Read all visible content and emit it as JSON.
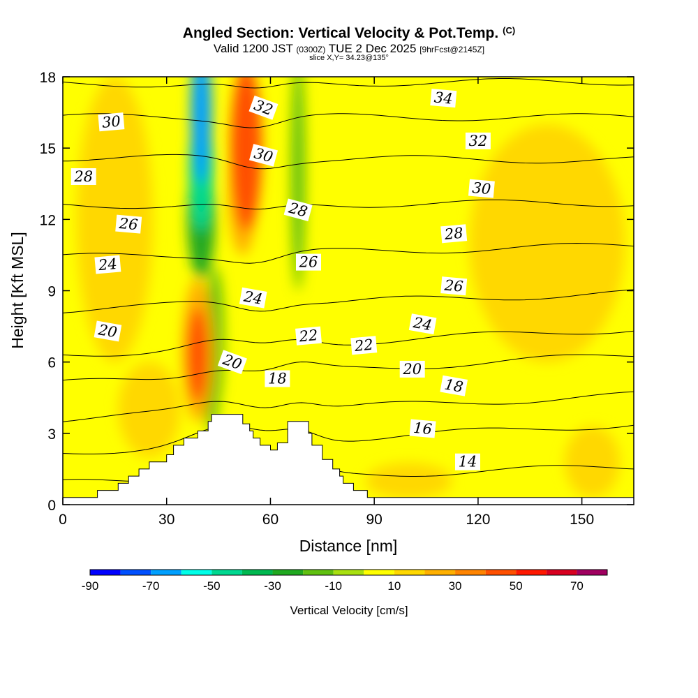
{
  "title": {
    "main": "Angled Section: Vertical Velocity & Pot.Temp.",
    "copyright": "(C)",
    "valid_prefix": "Valid 1200 JST",
    "valid_utc": "(0300Z)",
    "valid_date": "TUE 2 Dec 2025",
    "forecast": "[9hrFcst@2145Z]",
    "slice": "slice X,Y= 34.23@135°"
  },
  "chart_data": {
    "type": "heatmap",
    "xlabel": "Distance [nm]",
    "ylabel": "Height [Kft MSL]",
    "xlim": [
      0,
      165
    ],
    "ylim": [
      0,
      18
    ],
    "x_ticks": [
      "0",
      "30",
      "60",
      "90",
      "120",
      "150"
    ],
    "y_ticks": [
      "0",
      "3",
      "6",
      "9",
      "12",
      "15",
      "18"
    ],
    "background_level": 0,
    "terrain": [
      [
        0,
        0.3
      ],
      [
        10,
        0.3
      ],
      [
        10,
        0.6
      ],
      [
        16,
        0.6
      ],
      [
        16,
        0.9
      ],
      [
        19,
        0.9
      ],
      [
        19,
        1.2
      ],
      [
        22,
        1.2
      ],
      [
        22,
        1.5
      ],
      [
        25,
        1.5
      ],
      [
        25,
        1.8
      ],
      [
        30,
        1.8
      ],
      [
        30,
        2.1
      ],
      [
        32,
        2.1
      ],
      [
        32,
        2.5
      ],
      [
        35,
        2.5
      ],
      [
        35,
        2.8
      ],
      [
        39,
        2.8
      ],
      [
        39,
        3.1
      ],
      [
        42,
        3.1
      ],
      [
        42,
        3.5
      ],
      [
        43,
        3.5
      ],
      [
        43,
        3.8
      ],
      [
        52,
        3.8
      ],
      [
        52,
        3.4
      ],
      [
        54,
        3.4
      ],
      [
        54,
        3.1
      ],
      [
        55,
        3.1
      ],
      [
        55,
        2.8
      ],
      [
        57,
        2.8
      ],
      [
        57,
        2.5
      ],
      [
        60,
        2.5
      ],
      [
        60,
        2.3
      ],
      [
        62,
        2.3
      ],
      [
        62,
        2.6
      ],
      [
        65,
        2.6
      ],
      [
        65,
        3.5
      ],
      [
        71,
        3.5
      ],
      [
        71,
        3.0
      ],
      [
        72,
        3.0
      ],
      [
        72,
        2.5
      ],
      [
        75,
        2.5
      ],
      [
        75,
        1.9
      ],
      [
        78,
        1.9
      ],
      [
        78,
        1.5
      ],
      [
        80,
        1.5
      ],
      [
        80,
        1.2
      ],
      [
        81,
        1.2
      ],
      [
        81,
        0.9
      ],
      [
        84,
        0.9
      ],
      [
        84,
        0.6
      ],
      [
        88,
        0.6
      ],
      [
        88,
        0.3
      ],
      [
        165,
        0.3
      ]
    ],
    "vertical_velocity_features": [
      {
        "x": 40,
        "y": 16.5,
        "width": 6,
        "height": 6,
        "value": -70
      },
      {
        "x": 40,
        "y": 14.0,
        "width": 7,
        "height": 5,
        "value": -50
      },
      {
        "x": 40,
        "y": 12.0,
        "width": 8,
        "height": 5,
        "value": -30
      },
      {
        "x": 44,
        "y": 7.0,
        "width": 5,
        "height": 6,
        "value": -20
      },
      {
        "x": 43,
        "y": 5.0,
        "width": 4,
        "height": 4,
        "value": -20
      },
      {
        "x": 68,
        "y": 14.0,
        "width": 4,
        "height": 10,
        "value": -20
      },
      {
        "x": 53,
        "y": 15.0,
        "width": 9,
        "height": 7,
        "value": 40
      },
      {
        "x": 52,
        "y": 13.0,
        "width": 8,
        "height": 5,
        "value": 20
      },
      {
        "x": 39,
        "y": 6.3,
        "width": 6,
        "height": 4,
        "value": 40
      },
      {
        "x": 39,
        "y": 6.5,
        "width": 9,
        "height": 6,
        "value": 20
      },
      {
        "x": 15,
        "y": 12.0,
        "width": 22,
        "height": 12,
        "value": 10
      },
      {
        "x": 140,
        "y": 11.0,
        "width": 45,
        "height": 10,
        "value": 10
      },
      {
        "x": 153,
        "y": 1.8,
        "width": 16,
        "height": 3,
        "value": 10
      },
      {
        "x": 100,
        "y": 1.0,
        "width": 25,
        "height": 1.5,
        "value": 10
      },
      {
        "x": 25,
        "y": 4.0,
        "width": 18,
        "height": 4,
        "value": 10
      }
    ],
    "potential_temperature_contours": [
      {
        "level": 14,
        "y_left": 0.9,
        "y_right": 1.6
      },
      {
        "level": 16,
        "y_left": 2.2,
        "y_right": 3.4
      },
      {
        "level": 18,
        "y_left": 3.6,
        "y_right": 4.6
      },
      {
        "level": 20,
        "y_left": 5.1,
        "y_right": 6.3
      },
      {
        "level": 22,
        "y_left": 6.3,
        "y_right": 7.4
      },
      {
        "level": 24,
        "y_left": 8.2,
        "y_right": 8.9
      },
      {
        "level": 26,
        "y_left": 10.4,
        "y_right": 10.9
      },
      {
        "level": 28,
        "y_left": 12.6,
        "y_right": 12.7
      },
      {
        "level": 30,
        "y_left": 14.6,
        "y_right": 14.5
      },
      {
        "level": 32,
        "y_left": 16.3,
        "y_right": 16.3
      },
      {
        "level": 34,
        "y_left": 17.7,
        "y_right": 17.8
      }
    ],
    "contour_labels": [
      {
        "text": "30",
        "x": 14,
        "y": 16.1,
        "angle": -5
      },
      {
        "text": "28",
        "x": 6,
        "y": 13.8,
        "angle": 0
      },
      {
        "text": "26",
        "x": 19,
        "y": 11.8,
        "angle": 5
      },
      {
        "text": "24",
        "x": 13,
        "y": 10.1,
        "angle": -5
      },
      {
        "text": "20",
        "x": 13,
        "y": 7.3,
        "angle": 10
      },
      {
        "text": "32",
        "x": 58,
        "y": 16.7,
        "angle": 20
      },
      {
        "text": "30",
        "x": 58,
        "y": 14.7,
        "angle": 15
      },
      {
        "text": "28",
        "x": 68,
        "y": 12.4,
        "angle": 15
      },
      {
        "text": "26",
        "x": 71,
        "y": 10.2,
        "angle": 0
      },
      {
        "text": "24",
        "x": 55,
        "y": 8.7,
        "angle": 10
      },
      {
        "text": "22",
        "x": 71,
        "y": 7.1,
        "angle": -5
      },
      {
        "text": "20",
        "x": 49,
        "y": 6.0,
        "angle": 20
      },
      {
        "text": "18",
        "x": 62,
        "y": 5.3,
        "angle": 0
      },
      {
        "text": "22",
        "x": 87,
        "y": 6.7,
        "angle": -5
      },
      {
        "text": "34",
        "x": 110,
        "y": 17.1,
        "angle": 5
      },
      {
        "text": "32",
        "x": 120,
        "y": 15.3,
        "angle": 0
      },
      {
        "text": "30",
        "x": 121,
        "y": 13.3,
        "angle": 5
      },
      {
        "text": "28",
        "x": 113,
        "y": 11.4,
        "angle": -5
      },
      {
        "text": "26",
        "x": 113,
        "y": 9.2,
        "angle": 5
      },
      {
        "text": "24",
        "x": 104,
        "y": 7.6,
        "angle": 10
      },
      {
        "text": "20",
        "x": 101,
        "y": 5.7,
        "angle": 0
      },
      {
        "text": "18",
        "x": 113,
        "y": 5.0,
        "angle": 10
      },
      {
        "text": "16",
        "x": 104,
        "y": 3.2,
        "angle": 5
      },
      {
        "text": "14",
        "x": 117,
        "y": 1.8,
        "angle": 0
      }
    ],
    "colorbar": {
      "label": "Vertical Velocity [cm/s]",
      "levels": [
        -90,
        -80,
        -70,
        -60,
        -50,
        -40,
        -30,
        -20,
        -10,
        0,
        10,
        20,
        30,
        40,
        50,
        60,
        70,
        80
      ],
      "colors": [
        "#0000ff",
        "#0050ff",
        "#00a0ff",
        "#00ffe8",
        "#00d890",
        "#00b850",
        "#20a820",
        "#60c010",
        "#a8e010",
        "#ffff00",
        "#ffd800",
        "#ffb000",
        "#ff8400",
        "#ff5000",
        "#ff1800",
        "#d80020",
        "#a00060"
      ],
      "tick_values": [
        -90,
        -70,
        -50,
        -30,
        -10,
        10,
        30,
        50,
        70
      ],
      "tick_labels": [
        "-90",
        "-70",
        "-50",
        "-30",
        "-10",
        "10",
        "30",
        "50",
        "70"
      ],
      "max_color": "#6000a0"
    },
    "contour_color": "#000000"
  }
}
